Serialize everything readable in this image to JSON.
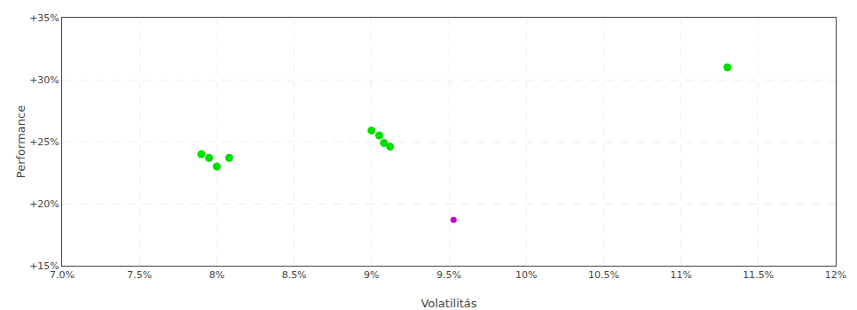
{
  "chart_data": {
    "type": "scatter",
    "xlabel": "Volatilitás",
    "ylabel": "Performance",
    "xlim": [
      0.07,
      0.12
    ],
    "ylim": [
      0.15,
      0.35
    ],
    "xticks": [
      {
        "value": 0.07,
        "label": "7.0%"
      },
      {
        "value": 0.075,
        "label": "7.5%"
      },
      {
        "value": 0.08,
        "label": "8%"
      },
      {
        "value": 0.085,
        "label": "8.5%"
      },
      {
        "value": 0.09,
        "label": "9%"
      },
      {
        "value": 0.095,
        "label": "9.5%"
      },
      {
        "value": 0.1,
        "label": "10%"
      },
      {
        "value": 0.105,
        "label": "10.5%"
      },
      {
        "value": 0.11,
        "label": "11%"
      },
      {
        "value": 0.115,
        "label": "11.5%"
      },
      {
        "value": 0.12,
        "label": "12%"
      }
    ],
    "yticks": [
      {
        "value": 0.15,
        "label": "+15%"
      },
      {
        "value": 0.2,
        "label": "+20%"
      },
      {
        "value": 0.25,
        "label": "+25%"
      },
      {
        "value": 0.3,
        "label": "+30%"
      },
      {
        "value": 0.35,
        "label": "+35%"
      }
    ],
    "grid": true,
    "series": [
      {
        "color": "#00dd00",
        "x": [
          0.079,
          0.0795,
          0.0808,
          0.08,
          0.09,
          0.0905,
          0.0908,
          0.0912,
          0.113
        ],
        "values": [
          0.24,
          0.237,
          0.237,
          0.23,
          0.259,
          0.255,
          0.249,
          0.246,
          0.31
        ]
      },
      {
        "color": "#cc00cc",
        "x": [
          0.0953
        ],
        "values": [
          0.187
        ]
      }
    ]
  }
}
